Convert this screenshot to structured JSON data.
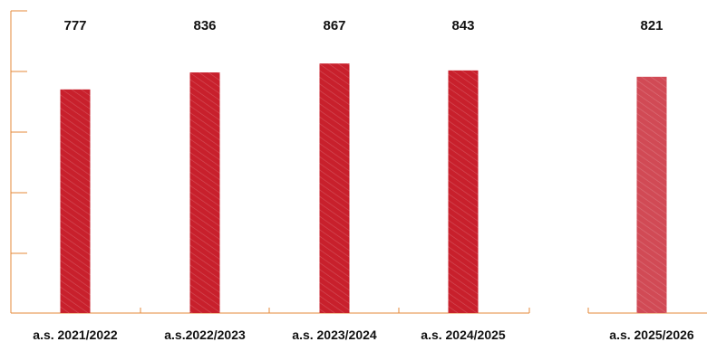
{
  "chart_data": {
    "type": "bar",
    "categories": [
      "a.s. 2021/2022",
      "a.s.2022/2023",
      "a.s. 2023/2024",
      "a.s. 2024/2025",
      "a.s. 2025/2026"
    ],
    "values": [
      777,
      836,
      867,
      843,
      821
    ],
    "value_labels": [
      "777",
      "836",
      "867",
      "843",
      "821"
    ],
    "ylim": [
      0,
      1050
    ],
    "grid": false,
    "colors": {
      "bar": "#c8202c",
      "bar_highlight": "#d14a55",
      "axis": "#e58a3a",
      "text": "#111111"
    }
  }
}
